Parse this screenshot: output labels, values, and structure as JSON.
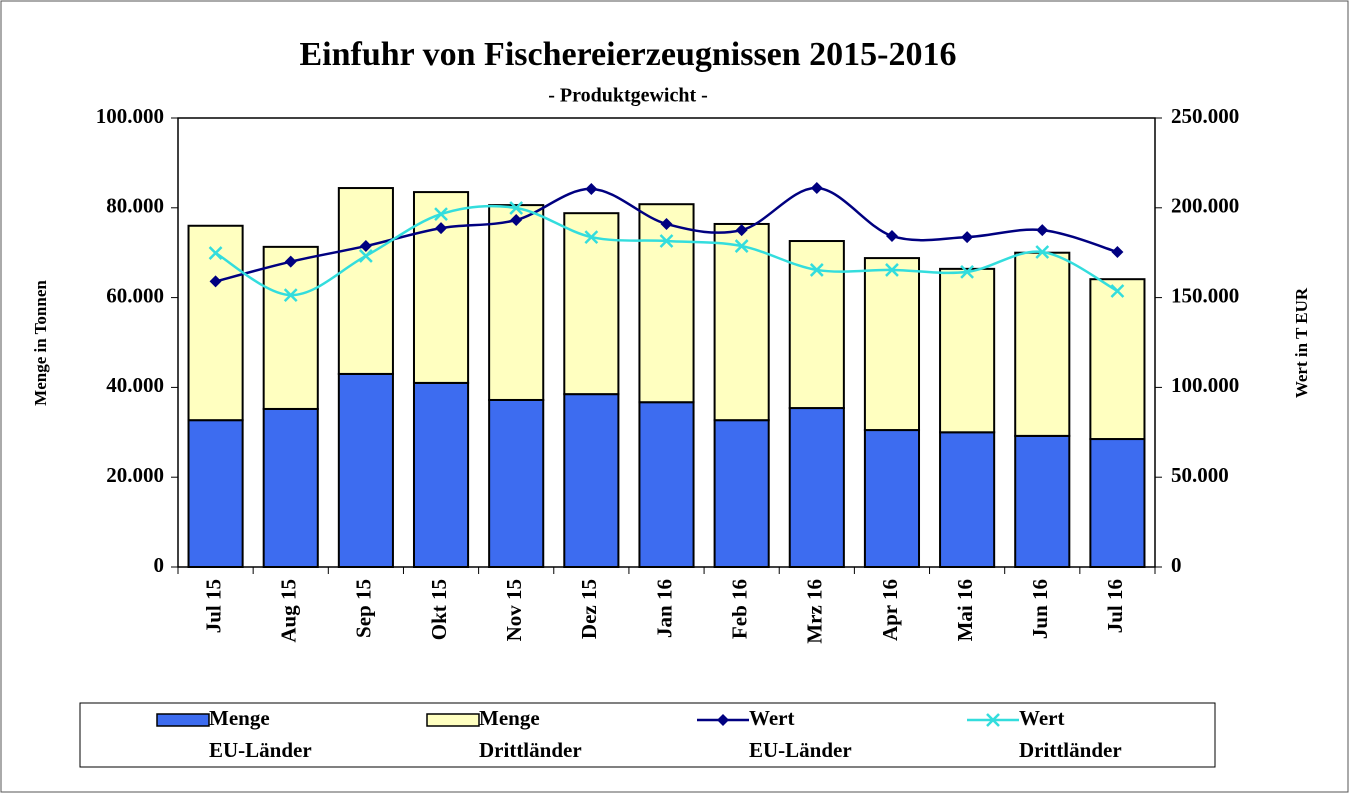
{
  "chart_data": {
    "type": "bar-line",
    "title": "Einfuhr von Fischereierzeugnissen 2015-2016",
    "subtitle": "- Produktgewicht -",
    "y_label": "Menge in Tonnen",
    "y2_label": "Wert in T EUR",
    "categories": [
      "Jul 15",
      "Aug 15",
      "Sep 15",
      "Okt 15",
      "Nov 15",
      "Dez 15",
      "Jan 16",
      "Feb 16",
      "Mrz 16",
      "Apr 16",
      "Mai 16",
      "Jun 16",
      "Jul 16"
    ],
    "ylim": [
      0,
      100000
    ],
    "yticks": [
      0,
      {
        "value": 20000,
        "label": "20.000"
      },
      {
        "value": 40000,
        "label": "40.000"
      },
      {
        "value": 60000,
        "label": "60.000"
      },
      {
        "value": 80000,
        "label": "80.000"
      },
      {
        "value": 100000,
        "label": "100.000"
      }
    ],
    "y2lim": [
      0,
      250000
    ],
    "y2ticks": [
      0,
      {
        "value": 50000,
        "label": "50.000"
      },
      {
        "value": 100000,
        "label": "100.000"
      },
      {
        "value": 150000,
        "label": "150.000"
      },
      {
        "value": 200000,
        "label": "200.000"
      },
      {
        "value": 250000,
        "label": "250.000"
      }
    ],
    "series": [
      {
        "name": "Menge\nEU-Länder",
        "kind": "bar",
        "color": "#3d6cf0",
        "values": [
          32700,
          35200,
          43000,
          41000,
          37200,
          38500,
          36700,
          32700,
          35400,
          30500,
          30000,
          29200,
          28500
        ]
      },
      {
        "name": "Menge\nDrittländer",
        "kind": "bar",
        "color": "#ffffc0",
        "values": [
          43300,
          36100,
          41400,
          42500,
          43400,
          40300,
          44100,
          43700,
          37200,
          38300,
          36400,
          40800,
          35600
        ]
      },
      {
        "name": "Wert\nEU-Länder",
        "kind": "line",
        "axis": "y2",
        "marker": "diamond",
        "color": "#000080",
        "values": [
          159000,
          170000,
          178700,
          188700,
          193200,
          210500,
          191000,
          187600,
          211000,
          184300,
          183700,
          187600,
          175400
        ]
      },
      {
        "name": "Wert\nDrittländer",
        "kind": "line",
        "axis": "y2",
        "marker": "x",
        "color": "#33dddd",
        "values": [
          174800,
          151400,
          173200,
          196500,
          199900,
          183700,
          181500,
          178700,
          165400,
          165400,
          164300,
          175400,
          153700
        ]
      }
    ]
  }
}
